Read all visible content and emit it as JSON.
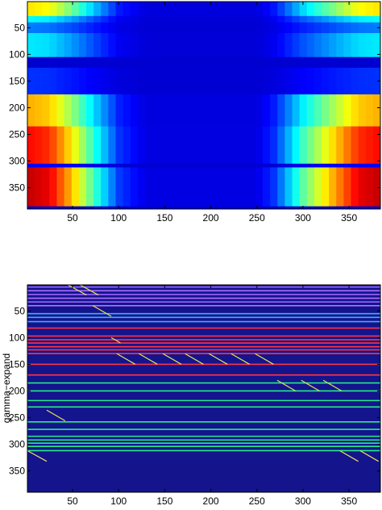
{
  "chart_data": [
    {
      "type": "heatmap",
      "title": "",
      "xlabel": "",
      "ylabel": "",
      "xlim": [
        1,
        384
      ],
      "ylim": [
        1,
        390
      ],
      "y_reversed": true,
      "colormap": "jet",
      "xticks": [
        50,
        100,
        150,
        200,
        250,
        300,
        350
      ],
      "yticks": [
        50,
        100,
        150,
        200,
        250,
        300,
        350
      ],
      "column_intensity": [
        {
          "x": 1,
          "v": 1.0
        },
        {
          "x": 25,
          "v": 0.95
        },
        {
          "x": 50,
          "v": 0.7
        },
        {
          "x": 75,
          "v": 0.4
        },
        {
          "x": 100,
          "v": 0.12
        },
        {
          "x": 130,
          "v": 0.02
        },
        {
          "x": 250,
          "v": 0.02
        },
        {
          "x": 270,
          "v": 0.12
        },
        {
          "x": 300,
          "v": 0.45
        },
        {
          "x": 335,
          "v": 0.75
        },
        {
          "x": 360,
          "v": 0.95
        },
        {
          "x": 384,
          "v": 1.0
        }
      ],
      "row_bands": [
        {
          "y0": 1,
          "y1": 28,
          "v": 0.62
        },
        {
          "y0": 28,
          "y1": 40,
          "v": 0.32
        },
        {
          "y0": 40,
          "y1": 60,
          "v": 0.18
        },
        {
          "y0": 60,
          "y1": 105,
          "v": 0.3
        },
        {
          "y0": 105,
          "y1": 125,
          "v": 0.0
        },
        {
          "y0": 125,
          "y1": 175,
          "v": 0.1
        },
        {
          "y0": 175,
          "y1": 235,
          "v": 0.68
        },
        {
          "y0": 235,
          "y1": 305,
          "v": 0.86
        },
        {
          "y0": 305,
          "y1": 312,
          "v": 0.05
        },
        {
          "y0": 312,
          "y1": 385,
          "v": 0.93
        },
        {
          "y0": 385,
          "y1": 390,
          "v": 0.0
        }
      ]
    },
    {
      "type": "heatmap",
      "title": "",
      "xlabel": "",
      "ylabel": "gamma−expand",
      "xlim": [
        1,
        384
      ],
      "ylim": [
        1,
        390
      ],
      "y_reversed": true,
      "background_color": "#14148c",
      "xticks": [
        50,
        100,
        150,
        200,
        250,
        300,
        350
      ],
      "yticks": [
        50,
        100,
        150,
        200,
        250,
        300,
        350
      ],
      "horizontal_lines": [
        {
          "y": 5,
          "color": "#9966ff"
        },
        {
          "y": 12,
          "color": "#b070ff"
        },
        {
          "y": 19,
          "color": "#9966ff"
        },
        {
          "y": 26,
          "color": "#b070ff"
        },
        {
          "y": 33,
          "color": "#9966ff"
        },
        {
          "y": 40,
          "color": "#b070ff"
        },
        {
          "y": 55,
          "color": "#3ab0ff"
        },
        {
          "y": 62,
          "color": "#3ab0ff"
        },
        {
          "y": 70,
          "color": "#3ab0ff"
        },
        {
          "y": 82,
          "color": "#ff3344"
        },
        {
          "y": 97,
          "color": "#ff3344"
        },
        {
          "y": 104,
          "color": "#ff3344"
        },
        {
          "y": 110,
          "color": "#ff3344"
        },
        {
          "y": 117,
          "color": "#ff3344"
        },
        {
          "y": 123,
          "color": "#ff3344"
        },
        {
          "y": 130,
          "color": "#ff3344"
        },
        {
          "y": 150,
          "color": "#ff3344"
        },
        {
          "y": 170,
          "color": "#ff3344"
        },
        {
          "y": 185,
          "color": "#22ee88"
        },
        {
          "y": 200,
          "color": "#22ee88"
        },
        {
          "y": 218,
          "color": "#22ee88"
        },
        {
          "y": 230,
          "color": "#22ee88"
        },
        {
          "y": 258,
          "color": "#22ee88"
        },
        {
          "y": 272,
          "color": "#22ee88"
        },
        {
          "y": 285,
          "color": "#22ee88"
        },
        {
          "y": 292,
          "color": "#22ee88"
        },
        {
          "y": 298,
          "color": "#22ee88"
        },
        {
          "y": 304,
          "color": "#22ee88"
        },
        {
          "y": 312,
          "color": "#22ee88"
        }
      ],
      "diagonal_segments": [
        {
          "x0": 45,
          "y0": 1,
          "x1": 65,
          "y1": 20
        },
        {
          "x0": 58,
          "y0": 1,
          "x1": 78,
          "y1": 20
        },
        {
          "x0": 72,
          "y0": 40,
          "x1": 92,
          "y1": 60
        },
        {
          "x0": 92,
          "y0": 100,
          "x1": 102,
          "y1": 110
        },
        {
          "x0": 98,
          "y0": 130,
          "x1": 118,
          "y1": 150
        },
        {
          "x0": 122,
          "y0": 130,
          "x1": 142,
          "y1": 150
        },
        {
          "x0": 148,
          "y0": 130,
          "x1": 168,
          "y1": 150
        },
        {
          "x0": 172,
          "y0": 130,
          "x1": 192,
          "y1": 150
        },
        {
          "x0": 198,
          "y0": 130,
          "x1": 218,
          "y1": 150
        },
        {
          "x0": 222,
          "y0": 130,
          "x1": 242,
          "y1": 150
        },
        {
          "x0": 248,
          "y0": 130,
          "x1": 268,
          "y1": 150
        },
        {
          "x0": 272,
          "y0": 180,
          "x1": 292,
          "y1": 200
        },
        {
          "x0": 298,
          "y0": 180,
          "x1": 318,
          "y1": 200
        },
        {
          "x0": 322,
          "y0": 180,
          "x1": 342,
          "y1": 200
        },
        {
          "x0": 22,
          "y0": 236,
          "x1": 42,
          "y1": 256
        },
        {
          "x0": 1,
          "y0": 312,
          "x1": 22,
          "y1": 332
        },
        {
          "x0": 340,
          "y0": 312,
          "x1": 360,
          "y1": 332
        },
        {
          "x0": 362,
          "y0": 312,
          "x1": 382,
          "y1": 332
        }
      ],
      "diagonal_color": "#e8e05a"
    }
  ]
}
